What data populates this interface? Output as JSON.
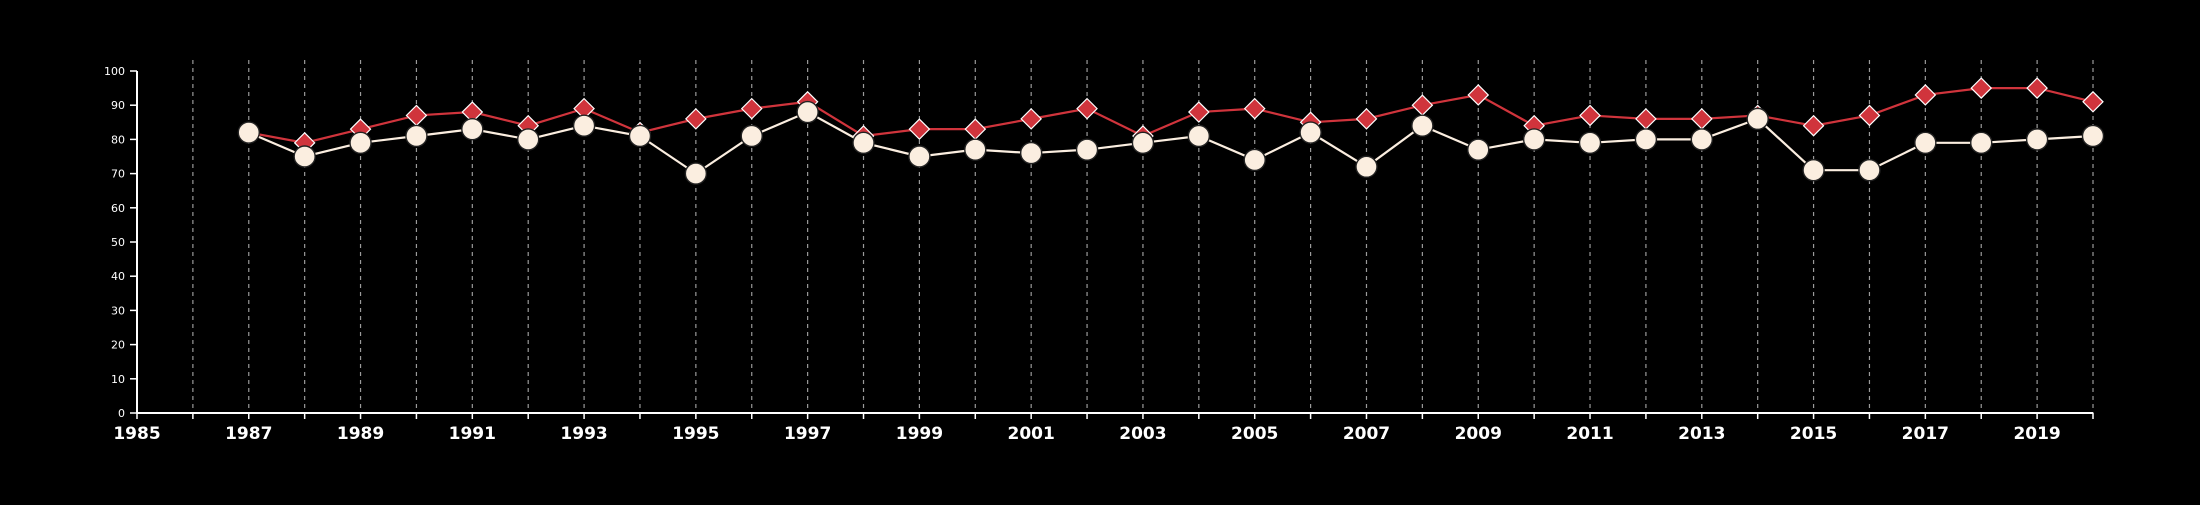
{
  "chart_data": {
    "type": "line",
    "title": "",
    "xlabel": "",
    "ylabel": "",
    "xlim": [
      1985,
      2020
    ],
    "ylim": [
      0,
      100
    ],
    "x_ticks": [
      1985,
      1987,
      1989,
      1991,
      1993,
      1995,
      1997,
      1999,
      2001,
      2003,
      2005,
      2007,
      2009,
      2011,
      2013,
      2015,
      2017,
      2019
    ],
    "y_ticks": [
      0,
      10,
      20,
      30,
      40,
      50,
      60,
      70,
      80,
      90,
      100
    ],
    "grid": {
      "vertical": true,
      "horizontal": false,
      "style": "dashed"
    },
    "legend": "none",
    "series": [
      {
        "color": "#d0343c",
        "marker": "diamond",
        "x": [
          1987,
          1988,
          1989,
          1990,
          1991,
          1992,
          1993,
          1994,
          1995,
          1996,
          1997,
          1998,
          1999,
          2000,
          2001,
          2002,
          2003,
          2004,
          2005,
          2006,
          2007,
          2008,
          2009,
          2010,
          2011,
          2012,
          2013,
          2014,
          2015,
          2016,
          2017,
          2018,
          2019,
          2020
        ],
        "values": [
          82,
          79,
          83,
          87,
          88,
          84,
          89,
          82,
          86,
          89,
          91,
          81,
          83,
          83,
          86,
          89,
          81,
          88,
          89,
          85,
          86,
          90,
          93,
          84,
          87,
          86,
          86,
          87,
          84,
          87,
          93,
          95,
          95,
          91
        ]
      },
      {
        "color": "#fbeee0",
        "marker": "circle",
        "x": [
          1987,
          1988,
          1989,
          1990,
          1991,
          1992,
          1993,
          1994,
          1995,
          1996,
          1997,
          1998,
          1999,
          2000,
          2001,
          2002,
          2003,
          2004,
          2005,
          2006,
          2007,
          2008,
          2009,
          2010,
          2011,
          2012,
          2013,
          2014,
          2015,
          2016,
          2017,
          2018,
          2019,
          2020
        ],
        "values": [
          82,
          75,
          79,
          81,
          83,
          80,
          84,
          81,
          70,
          81,
          88,
          79,
          75,
          77,
          76,
          77,
          79,
          81,
          74,
          82,
          72,
          84,
          77,
          80,
          79,
          80,
          80,
          86,
          71,
          71,
          79,
          79,
          80,
          81
        ]
      }
    ]
  }
}
